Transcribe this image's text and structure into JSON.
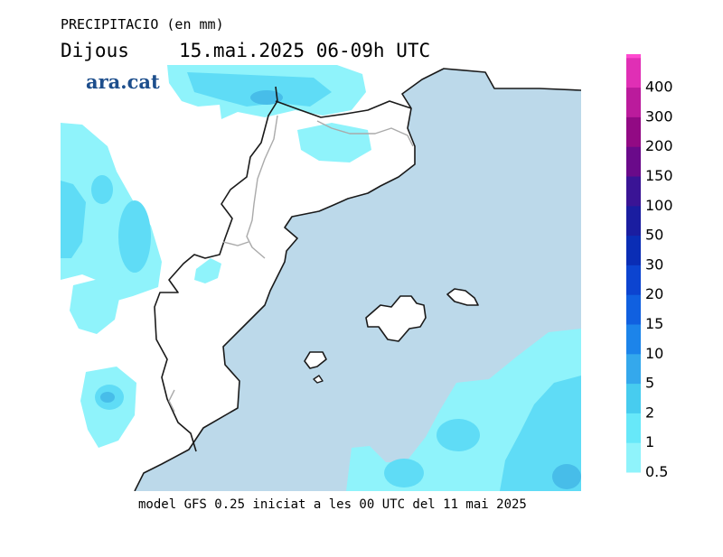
{
  "header": {
    "variable": "PRECIPITACIO (en mm)",
    "day": "Dijous",
    "date_range": "15.mai.2025 06-09h UTC"
  },
  "logo": "ara.cat",
  "footer": "model GFS 0.25 iniciat a les 00 UTC del 11 mai 2025",
  "colors": {
    "sea": "#bcd9ea",
    "land": "#ffffff",
    "coast": "#1a1a1a",
    "border": "#aaaaaa",
    "precip_light": "#8ff3fb",
    "precip_mid": "#5fdcf6",
    "precip_heavy": "#47bde9"
  },
  "legend": {
    "entries": [
      {
        "label": "0.5",
        "color": "#8ff3fb"
      },
      {
        "label": "1",
        "color": "#67e8f9"
      },
      {
        "label": "2",
        "color": "#47ccef"
      },
      {
        "label": "5",
        "color": "#34a8ec"
      },
      {
        "label": "10",
        "color": "#1c84ea"
      },
      {
        "label": "15",
        "color": "#1060e0"
      },
      {
        "label": "20",
        "color": "#0c44d0"
      },
      {
        "label": "30",
        "color": "#0a2db5"
      },
      {
        "label": "50",
        "color": "#1a1da0"
      },
      {
        "label": "100",
        "color": "#3a1495"
      },
      {
        "label": "150",
        "color": "#6a0a8a"
      },
      {
        "label": "200",
        "color": "#920a84"
      },
      {
        "label": "300",
        "color": "#bb1b9c"
      },
      {
        "label": "400",
        "color": "#e02fb5"
      },
      {
        "label": "",
        "color": "#ff4ad0"
      }
    ]
  }
}
